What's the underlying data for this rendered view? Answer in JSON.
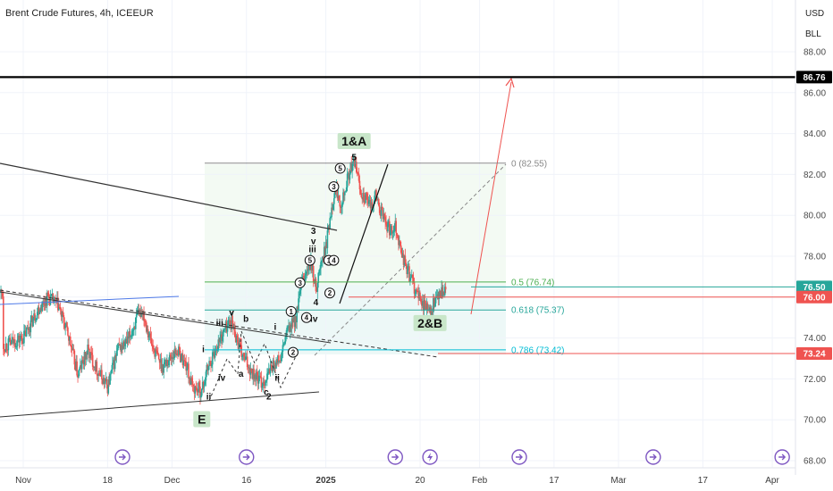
{
  "header": {
    "title": "Brent Crude Futures, 4h, ICEEUR",
    "currency": "USD",
    "unit": "BLL"
  },
  "colors": {
    "up": "#26a69a",
    "down": "#ef5350",
    "fib0": "#888888",
    "fib05": "#4caf50",
    "fib0618": "#26a69a",
    "fib0786": "#00bcd4",
    "marker_86": "#000000",
    "marker_76_50": "#26a69a",
    "marker_76_00": "#ef5350",
    "marker_73_24": "#ef5350",
    "event_icon": "#7e57c2"
  },
  "chart_data": {
    "type": "candlestick",
    "y_ticks": [
      "88.00",
      "86.00",
      "84.00",
      "82.00",
      "80.00",
      "78.00",
      "76.00",
      "74.00",
      "72.00",
      "70.00",
      "68.00"
    ],
    "ylim": [
      68.0,
      88.6
    ],
    "x_ticks": [
      "Nov",
      "18",
      "Dec",
      "16",
      "2025",
      "20",
      "Feb",
      "17",
      "Mar",
      "17",
      "Apr"
    ],
    "x_tick_days": [
      0,
      17,
      30,
      45,
      61,
      80,
      92,
      107,
      120,
      137,
      151
    ],
    "candles_start": "Nov",
    "price_markers": [
      {
        "label": "86.76",
        "value": 86.76,
        "color_key": "marker_86"
      },
      {
        "label": "76.50",
        "value": 76.5,
        "color_key": "marker_76_50"
      },
      {
        "label": "76.00",
        "value": 76.0,
        "color_key": "marker_76_00"
      },
      {
        "label": "73.24",
        "value": 73.24,
        "color_key": "marker_73_24"
      }
    ],
    "fib_levels": [
      {
        "label": "0 (82.55)",
        "value": 82.55,
        "color_key": "fib0"
      },
      {
        "label": "0.5 (76.74)",
        "value": 76.74,
        "color_key": "fib05"
      },
      {
        "label": "0.618 (75.37)",
        "value": 75.37,
        "color_key": "fib0618"
      },
      {
        "label": "0.786 (73.42)",
        "value": 73.42,
        "color_key": "fib0786"
      }
    ],
    "wave_labels": [
      {
        "text": "1&A",
        "day": 66.7,
        "price": 83.5,
        "style": "big"
      },
      {
        "text": "5",
        "day": 66.7,
        "price": 82.7,
        "style": "plain"
      },
      {
        "text": "3",
        "day": 58.5,
        "price": 79.1,
        "style": "plain"
      },
      {
        "text": "v",
        "day": 58.5,
        "price": 78.6,
        "style": "plain"
      },
      {
        "text": "iii",
        "day": 58.3,
        "price": 78.2,
        "style": "plain"
      },
      {
        "text": "4",
        "day": 59.0,
        "price": 75.6,
        "style": "plain"
      },
      {
        "text": "iv",
        "day": 58.6,
        "price": 74.8,
        "style": "plain"
      },
      {
        "text": "2&B",
        "day": 82.0,
        "price": 74.6,
        "style": "big"
      },
      {
        "text": "v",
        "day": 42.0,
        "price": 75.1,
        "style": "plain"
      },
      {
        "text": "iii",
        "day": 39.6,
        "price": 74.6,
        "style": "plain"
      },
      {
        "text": "b",
        "day": 44.9,
        "price": 74.8,
        "style": "plain"
      },
      {
        "text": "i",
        "day": 36.3,
        "price": 73.3,
        "style": "plain"
      },
      {
        "text": "iv",
        "day": 40.0,
        "price": 71.9,
        "style": "plain"
      },
      {
        "text": "a",
        "day": 43.9,
        "price": 72.1,
        "style": "plain"
      },
      {
        "text": "ii",
        "day": 37.4,
        "price": 71.0,
        "style": "plain"
      },
      {
        "text": "c",
        "day": 49.0,
        "price": 71.2,
        "style": "plain"
      },
      {
        "text": "2",
        "day": 49.5,
        "price": 71.0,
        "style": "plain"
      },
      {
        "text": "ii",
        "day": 51.2,
        "price": 71.9,
        "style": "plain"
      },
      {
        "text": "i",
        "day": 50.8,
        "price": 74.4,
        "style": "plain"
      },
      {
        "text": "E",
        "day": 36.0,
        "price": 69.9,
        "style": "big"
      }
    ],
    "circled_labels": [
      {
        "text": "5",
        "day": 63.9,
        "price": 82.3
      },
      {
        "text": "3",
        "day": 62.6,
        "price": 81.4
      },
      {
        "text": "5",
        "day": 57.8,
        "price": 77.8
      },
      {
        "text": "3",
        "day": 55.8,
        "price": 76.7
      },
      {
        "text": "1",
        "day": 54.0,
        "price": 75.3
      },
      {
        "text": "4",
        "day": 57.1,
        "price": 75.0
      },
      {
        "text": "2",
        "day": 61.8,
        "price": 76.2
      },
      {
        "text": "2",
        "day": 54.4,
        "price": 73.3
      },
      {
        "text": "1",
        "day": 61.6,
        "price": 77.8
      },
      {
        "text": "4",
        "day": 62.6,
        "price": 77.8
      }
    ],
    "event_days": [
      20,
      45,
      75,
      82,
      100,
      127,
      153
    ]
  }
}
